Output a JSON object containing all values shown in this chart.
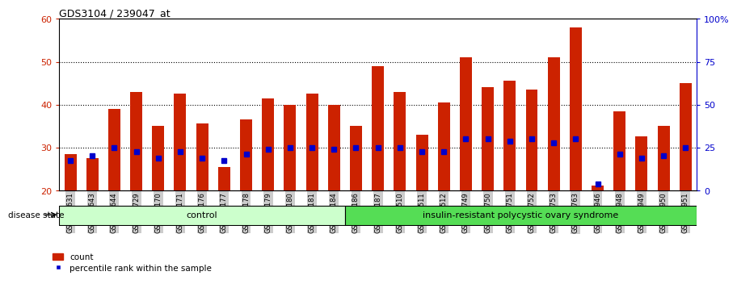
{
  "title": "GDS3104 / 239047_at",
  "samples": [
    "GSM155631",
    "GSM155643",
    "GSM155644",
    "GSM155729",
    "GSM156170",
    "GSM156171",
    "GSM156176",
    "GSM156177",
    "GSM156178",
    "GSM156179",
    "GSM156180",
    "GSM156181",
    "GSM156184",
    "GSM156186",
    "GSM156187",
    "GSM156510",
    "GSM156511",
    "GSM156512",
    "GSM156749",
    "GSM156750",
    "GSM156751",
    "GSM156752",
    "GSM156753",
    "GSM156763",
    "GSM156946",
    "GSM156948",
    "GSM156949",
    "GSM156950",
    "GSM156951"
  ],
  "counts": [
    28.5,
    27.5,
    39.0,
    43.0,
    35.0,
    42.5,
    35.5,
    25.5,
    36.5,
    41.5,
    40.0,
    42.5,
    40.0,
    35.0,
    49.0,
    43.0,
    33.0,
    40.5,
    51.0,
    44.0,
    45.5,
    43.5,
    51.0,
    58.0,
    21.0,
    38.5,
    32.5,
    35.0,
    45.0
  ],
  "percentile_ranks": [
    27.0,
    28.0,
    30.0,
    29.0,
    27.5,
    29.0,
    27.5,
    27.0,
    28.5,
    29.5,
    30.0,
    30.0,
    29.5,
    30.0,
    30.0,
    30.0,
    29.0,
    29.0,
    32.0,
    32.0,
    31.5,
    32.0,
    31.0,
    32.0,
    21.5,
    28.5,
    27.5,
    28.0,
    30.0
  ],
  "control_count": 13,
  "bar_color": "#cc2200",
  "marker_color": "#0000cc",
  "ymin": 20,
  "ymax": 60,
  "yticks_left": [
    20,
    30,
    40,
    50,
    60
  ],
  "yticks_right_vals": [
    0,
    25,
    50,
    75,
    100
  ],
  "yticks_right_labels": [
    "0",
    "25",
    "50",
    "75",
    "100%"
  ],
  "grid_values": [
    30,
    40,
    50
  ],
  "bg_color": "#ffffff",
  "control_bg": "#ccffcc",
  "insulin_bg": "#55dd55",
  "label_bg": "#cccccc",
  "disease_state_label": "disease state",
  "control_label": "control",
  "insulin_label": "insulin-resistant polycystic ovary syndrome",
  "legend_count": "count",
  "legend_percentile": "percentile rank within the sample",
  "left_ytick_color": "#cc2200",
  "right_ytick_color": "#0000cc",
  "bar_width": 0.55
}
